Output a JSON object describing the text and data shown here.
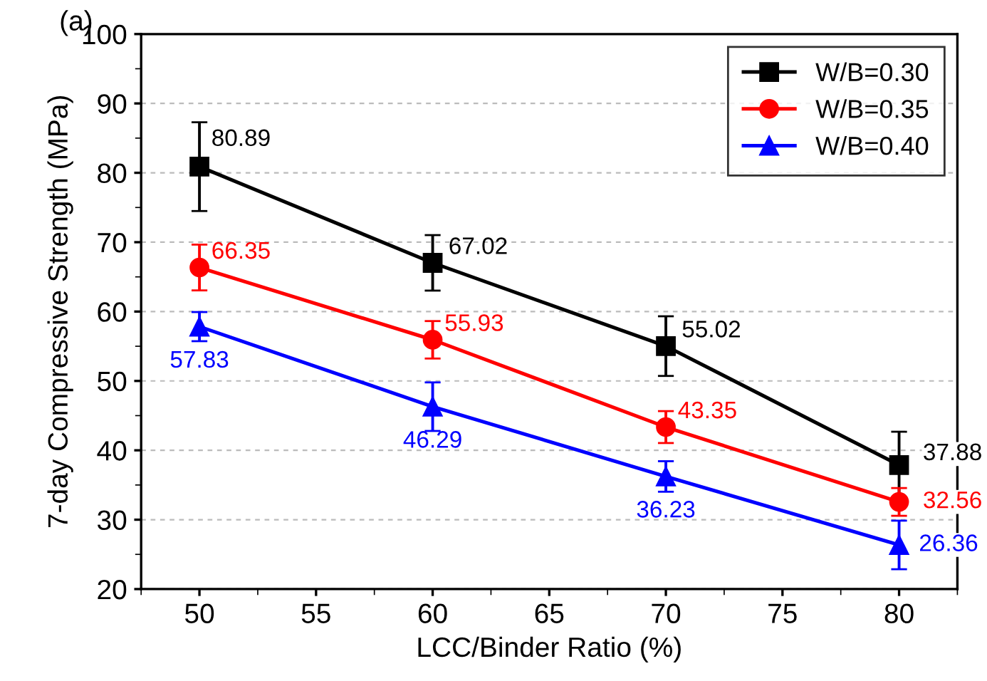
{
  "chart_data": {
    "type": "line",
    "xlabel": "LCC/Binder Ratio (%)",
    "ylabel": "7-day Compressive Strength (MPa)",
    "annotations": [
      "(a)"
    ],
    "x": [
      50,
      60,
      70,
      80
    ],
    "series": [
      {
        "name": "W/B=0.30",
        "color": "#000000",
        "marker": "square",
        "values": [
          80.89,
          67.02,
          55.02,
          37.88
        ],
        "errors": [
          6.4,
          4.0,
          4.3,
          4.8
        ]
      },
      {
        "name": "W/B=0.35",
        "color": "#ff0000",
        "marker": "circle",
        "values": [
          66.35,
          55.93,
          43.35,
          32.56
        ],
        "errors": [
          3.3,
          2.7,
          2.3,
          2.0
        ]
      },
      {
        "name": "W/B=0.40",
        "color": "#0000ff",
        "marker": "triangle",
        "values": [
          57.83,
          46.29,
          36.23,
          26.36
        ],
        "errors": [
          2.1,
          3.5,
          2.2,
          3.5
        ]
      }
    ],
    "data_labels": true,
    "xlim": [
      47.5,
      82.5
    ],
    "xticks": [
      50,
      55,
      60,
      65,
      70,
      75,
      80
    ],
    "ylim": [
      20,
      100
    ],
    "yticks": [
      20,
      30,
      40,
      50,
      60,
      70,
      80,
      90,
      100
    ],
    "grid": "y",
    "legend": "top right",
    "line_style": "solid"
  }
}
